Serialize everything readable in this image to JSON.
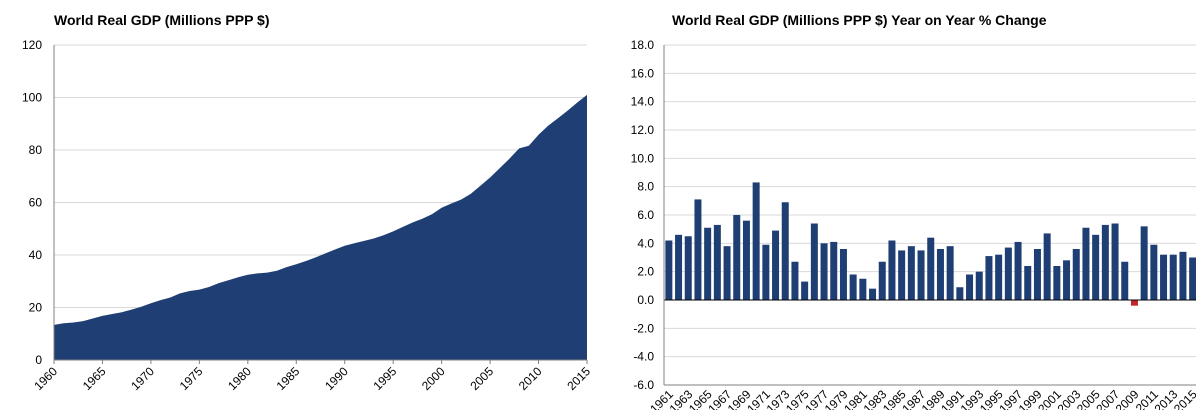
{
  "chart_data": [
    {
      "type": "area",
      "title": "World Real GDP (Millions PPP $)",
      "xlabel": "",
      "ylabel": "",
      "xlim": [
        1960,
        2015
      ],
      "ylim": [
        0,
        120
      ],
      "y_ticks": [
        0,
        20,
        40,
        60,
        80,
        100,
        120
      ],
      "x_ticks": [
        1960,
        1965,
        1970,
        1975,
        1980,
        1985,
        1990,
        1995,
        2000,
        2005,
        2010,
        2015
      ],
      "grid": true,
      "legend": "none",
      "color": "#1f3f74",
      "x": [
        1960,
        1961,
        1962,
        1963,
        1964,
        1965,
        1966,
        1967,
        1968,
        1969,
        1970,
        1971,
        1972,
        1973,
        1974,
        1975,
        1976,
        1977,
        1978,
        1979,
        1980,
        1981,
        1982,
        1983,
        1984,
        1985,
        1986,
        1987,
        1988,
        1989,
        1990,
        1991,
        1992,
        1993,
        1994,
        1995,
        1996,
        1997,
        1998,
        1999,
        2000,
        2001,
        2002,
        2003,
        2004,
        2005,
        2006,
        2007,
        2008,
        2009,
        2010,
        2011,
        2012,
        2013,
        2014,
        2015
      ],
      "values": [
        13.4,
        14.0,
        14.3,
        14.8,
        15.8,
        16.8,
        17.5,
        18.2,
        19.2,
        20.3,
        21.6,
        22.8,
        23.8,
        25.4,
        26.3,
        26.8,
        27.8,
        29.3,
        30.4,
        31.5,
        32.5,
        33.0,
        33.3,
        34.0,
        35.4,
        36.5,
        37.7,
        39.1,
        40.6,
        42.1,
        43.5,
        44.5,
        45.4,
        46.3,
        47.5,
        49.0,
        50.7,
        52.4,
        53.8,
        55.5,
        58.0,
        59.6,
        61.1,
        63.3,
        66.4,
        69.5,
        73.1,
        76.7,
        80.6,
        81.6,
        85.8,
        89.3,
        92.1,
        95.0,
        98.1,
        101.0
      ]
    },
    {
      "type": "bar",
      "title": "World Real GDP (Millions PPP $) Year on Year % Change",
      "xlabel": "",
      "ylabel": "",
      "ylim": [
        -6,
        18
      ],
      "y_ticks": [
        "-6.0",
        "-4.0",
        "-2.0",
        "0.0",
        "2.0",
        "4.0",
        "6.0",
        "8.0",
        "10.0",
        "12.0",
        "14.0",
        "16.0",
        "18.0"
      ],
      "x_tick_labels": [
        "1961",
        "1963",
        "1965",
        "1967",
        "1969",
        "1971",
        "1973",
        "1975",
        "1977",
        "1979",
        "1981",
        "1983",
        "1985",
        "1987",
        "1989",
        "1991",
        "1993",
        "1995",
        "1997",
        "1999",
        "2001",
        "2003",
        "2005",
        "2007",
        "2009",
        "2011",
        "2013",
        "2015"
      ],
      "grid": true,
      "legend": "none",
      "color_positive": "#1f3f74",
      "color_negative": "#c0272d",
      "categories": [
        "1961",
        "1962",
        "1963",
        "1964",
        "1965",
        "1966",
        "1967",
        "1968",
        "1969",
        "1970",
        "1971",
        "1972",
        "1973",
        "1974",
        "1975",
        "1976",
        "1977",
        "1978",
        "1979",
        "1980",
        "1981",
        "1982",
        "1983",
        "1984",
        "1985",
        "1986",
        "1987",
        "1988",
        "1989",
        "1990",
        "1991",
        "1992",
        "1993",
        "1994",
        "1995",
        "1996",
        "1997",
        "1998",
        "1999",
        "2000",
        "2001",
        "2002",
        "2003",
        "2004",
        "2005",
        "2006",
        "2007",
        "2008",
        "2009",
        "2010",
        "2011",
        "2012",
        "2013",
        "2014",
        "2015"
      ],
      "values": [
        4.2,
        4.6,
        4.5,
        7.1,
        5.1,
        5.3,
        3.8,
        6.0,
        5.6,
        8.3,
        3.9,
        4.9,
        6.9,
        2.7,
        1.3,
        5.4,
        4.0,
        4.1,
        3.6,
        1.8,
        1.5,
        0.8,
        2.7,
        4.2,
        3.5,
        3.8,
        3.5,
        4.4,
        3.6,
        3.8,
        0.9,
        1.8,
        2.0,
        3.1,
        3.2,
        3.7,
        4.1,
        2.4,
        3.6,
        4.7,
        2.4,
        2.8,
        3.6,
        5.1,
        4.6,
        5.3,
        5.4,
        2.7,
        -0.4,
        5.2,
        3.9,
        3.2,
        3.2,
        3.4,
        3.0
      ]
    }
  ]
}
